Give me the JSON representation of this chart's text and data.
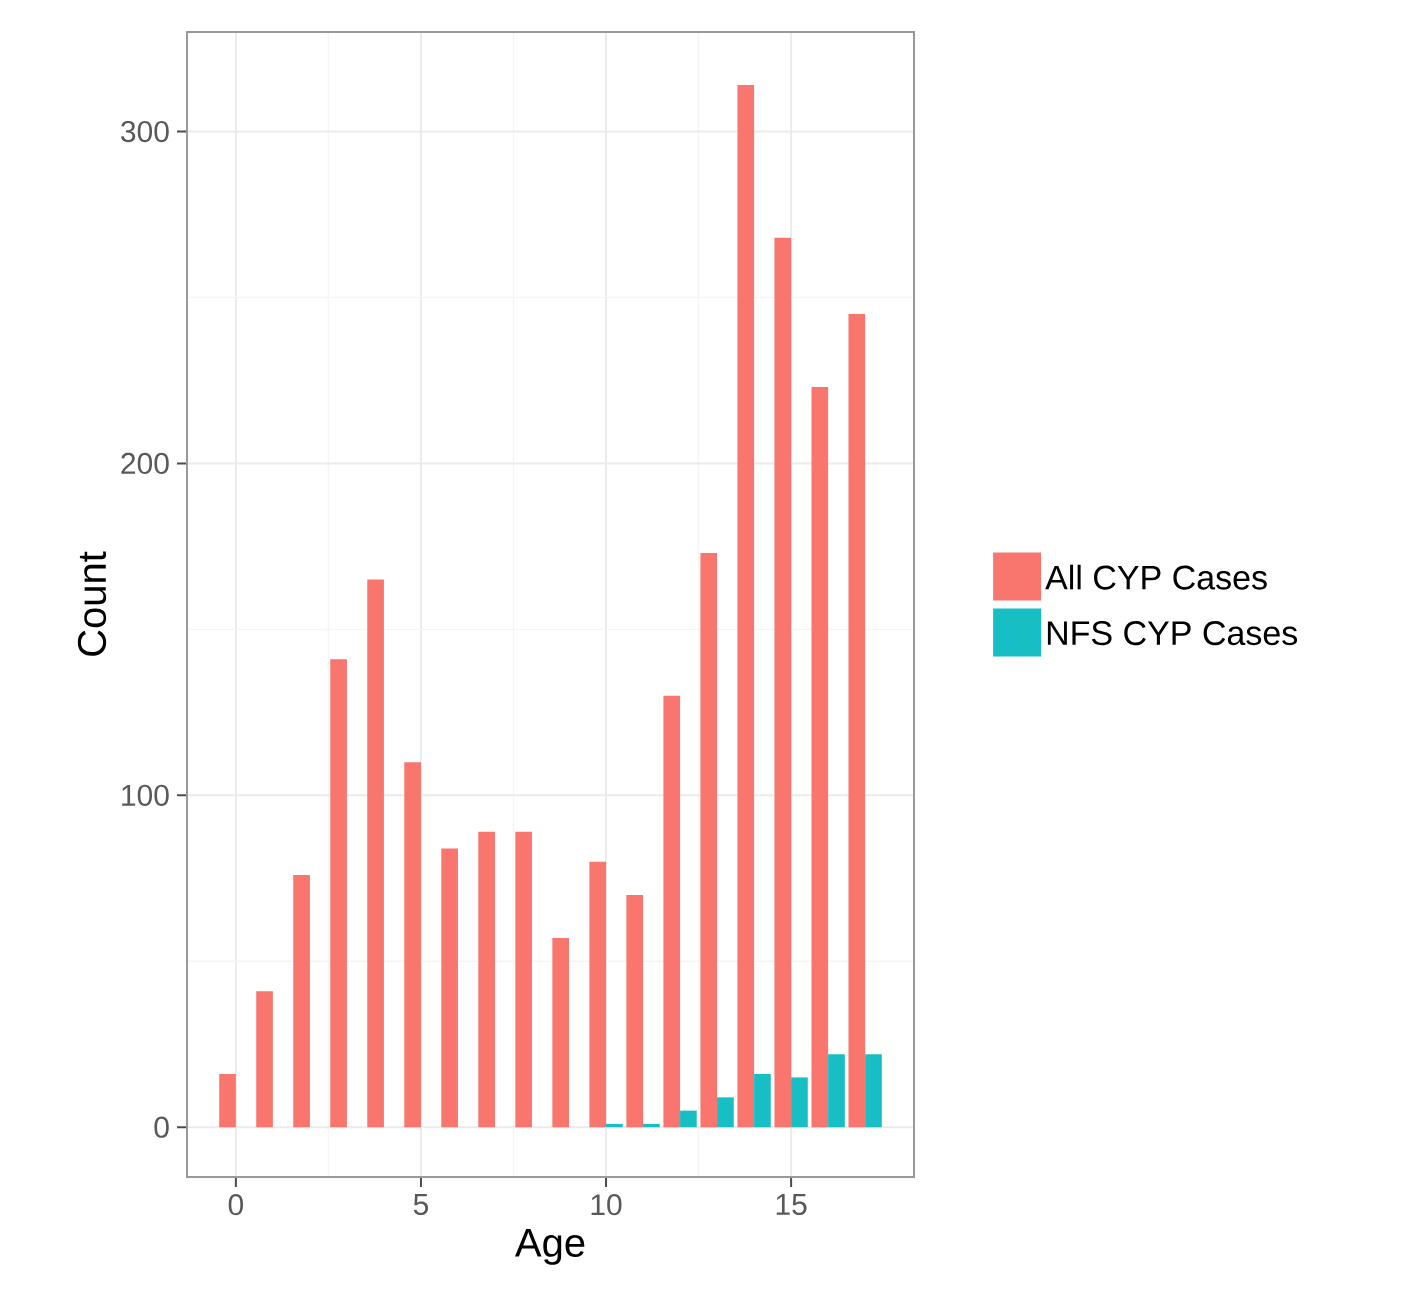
{
  "chart_data": {
    "type": "bar",
    "xlabel": "Age",
    "ylabel": "Count",
    "x": [
      0,
      1,
      2,
      3,
      4,
      5,
      6,
      7,
      8,
      9,
      10,
      11,
      12,
      13,
      14,
      15,
      16,
      17
    ],
    "series": [
      {
        "name": "All CYP Cases",
        "color": "#f8766d",
        "values": [
          16,
          41,
          76,
          141,
          165,
          110,
          84,
          89,
          89,
          57,
          80,
          70,
          130,
          173,
          314,
          268,
          223,
          245
        ]
      },
      {
        "name": "NFS CYP Cases",
        "color": "#17bec4",
        "values": [
          0,
          0,
          0,
          0,
          0,
          0,
          0,
          0,
          0,
          0,
          1,
          1,
          5,
          9,
          16,
          15,
          22,
          22
        ]
      }
    ],
    "xlim": [
      -1.32,
      18.32
    ],
    "ylim": [
      -15,
      330
    ],
    "xticks": [
      0,
      5,
      10,
      15
    ],
    "yticks": [
      0,
      100,
      200,
      300
    ],
    "grid": true,
    "legend": "right"
  }
}
